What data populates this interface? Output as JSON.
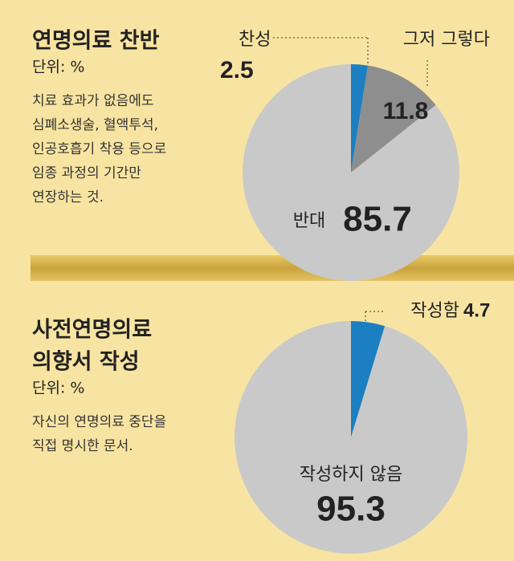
{
  "chart_data": [
    {
      "type": "pie",
      "title_lines": [
        "연명의료 찬반"
      ],
      "unit": "단위: %",
      "description_lines": [
        "치료 효과가 없음에도",
        "심폐소생술, 혈액투석,",
        "인공호흡기 착용 등으로",
        "임종 과정의 기간만",
        "연장하는 것."
      ],
      "categories": [
        "찬성",
        "그저 그렇다",
        "반대"
      ],
      "values": [
        2.5,
        11.8,
        85.7
      ],
      "colors": [
        "#1b7fc2",
        "#8e8e8e",
        "#c9c9c9"
      ]
    },
    {
      "type": "pie",
      "title_lines": [
        "사전연명의료",
        "의향서 작성"
      ],
      "unit": "단위: %",
      "description_lines": [
        "자신의 연명의료 중단을",
        "직접 명시한 문서."
      ],
      "categories": [
        "작성함",
        "작성하지 않음"
      ],
      "values": [
        4.7,
        95.3
      ],
      "colors": [
        "#1b7fc2",
        "#c9c9c9"
      ]
    }
  ]
}
